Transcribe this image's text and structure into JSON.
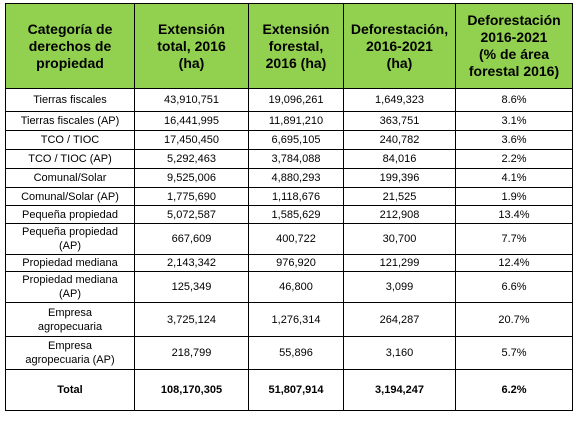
{
  "table": {
    "header": [
      "Categoría de\nderechos de\npropiedad",
      "Extensión\ntotal, 2016\n(ha)",
      "Extensión\nforestal,\n2016 (ha)",
      "Deforestación,\n2016-2021\n(ha)",
      "Deforestación\n2016-2021\n(% de área\nforestal 2016)"
    ],
    "rows": [
      [
        "Tierras fiscales",
        "43,910,751",
        "19,096,261",
        "1,649,323",
        "8.6%"
      ],
      [
        "Tierras fiscales (AP)",
        "16,441,995",
        "11,891,210",
        "363,751",
        "3.1%"
      ],
      [
        "TCO / TIOC",
        "17,450,450",
        "6,695,105",
        "240,782",
        "3.6%"
      ],
      [
        "TCO / TIOC (AP)",
        "5,292,463",
        "3,784,088",
        "84,016",
        "2.2%"
      ],
      [
        "Comunal/Solar",
        "9,525,006",
        "4,880,293",
        "199,396",
        "4.1%"
      ],
      [
        "Comunal/Solar (AP)",
        "1,775,690",
        "1,118,676",
        "21,525",
        "1.9%"
      ],
      [
        "Pequeña propiedad",
        "5,072,587",
        "1,585,629",
        "212,908",
        "13.4%"
      ],
      [
        "Pequeña propiedad\n(AP)",
        "667,609",
        "400,722",
        "30,700",
        "7.7%"
      ],
      [
        "Propiedad mediana",
        "2,143,342",
        "976,920",
        "121,299",
        "12.4%"
      ],
      [
        "Propiedad mediana\n(AP)",
        "125,349",
        "46,800",
        "3,099",
        "6.6%"
      ],
      [
        "Empresa\nagropecuaria",
        "3,725,124",
        "1,276,314",
        "264,287",
        "20.7%"
      ],
      [
        "Empresa\nagropecuaria (AP)",
        "218,799",
        "55,896",
        "3,160",
        "5.7%"
      ],
      [
        "Total",
        "108,170,305",
        "51,807,914",
        "3,194,247",
        "6.2%"
      ]
    ]
  }
}
